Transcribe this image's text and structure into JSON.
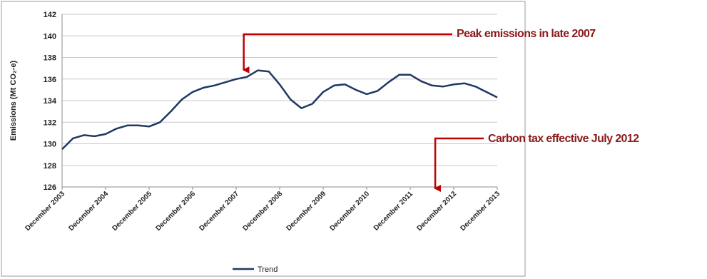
{
  "chart_data": {
    "type": "line",
    "ylabel": "Emissions (Mt CO₂-e)",
    "ylim": [
      126,
      142
    ],
    "yticks": [
      "126",
      "128",
      "130",
      "132",
      "134",
      "136",
      "138",
      "140",
      "142"
    ],
    "x_tick_labels": [
      "December 2003",
      "December 2004",
      "December 2005",
      "December 2006",
      "December 2007",
      "December 2008",
      "December 2009",
      "December 2010",
      "December 2011",
      "December 2012",
      "December 2013"
    ],
    "grid": true,
    "legend_position": "bottom",
    "series": [
      {
        "name": "Trend",
        "color": "#1f3864",
        "values": [
          129.5,
          130.5,
          130.8,
          130.7,
          130.9,
          131.4,
          131.7,
          131.7,
          131.6,
          132.0,
          133.0,
          134.1,
          134.8,
          135.2,
          135.4,
          135.7,
          136.0,
          136.2,
          136.8,
          136.7,
          135.5,
          134.1,
          133.3,
          133.7,
          134.8,
          135.4,
          135.5,
          135.0,
          134.6,
          134.9,
          135.7,
          136.4,
          136.4,
          135.8,
          135.4,
          135.3,
          135.5,
          135.6,
          135.3,
          134.8,
          134.3
        ]
      }
    ],
    "annotations": [
      {
        "text": "Peak emissions in late 2007",
        "x_position": 16.7,
        "color": "#c00000"
      },
      {
        "text": "Carbon tax effective July 2012",
        "x_position": 34.3,
        "color": "#c00000"
      }
    ]
  }
}
